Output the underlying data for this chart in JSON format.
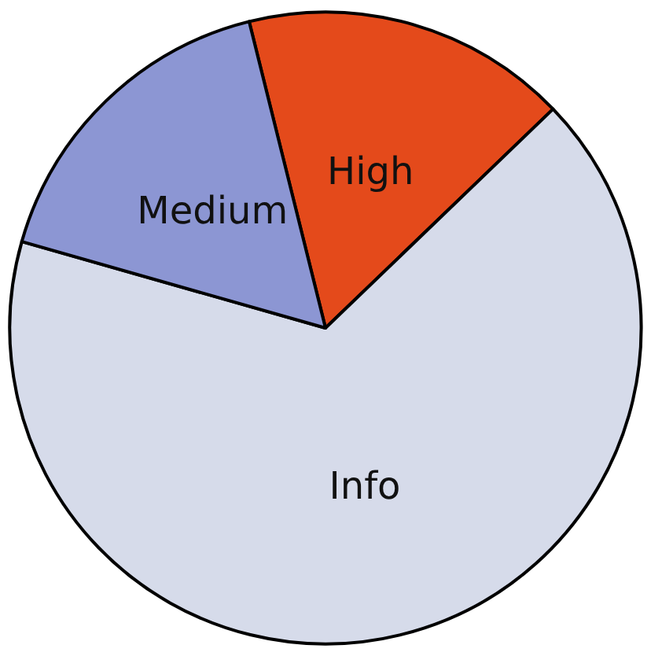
{
  "chart_data": {
    "type": "pie",
    "categories": [
      "High",
      "Info",
      "Medium"
    ],
    "values": [
      16.7,
      66.6,
      16.7
    ],
    "colors": [
      "#e44a1b",
      "#d6dbea",
      "#8c96d3"
    ]
  }
}
